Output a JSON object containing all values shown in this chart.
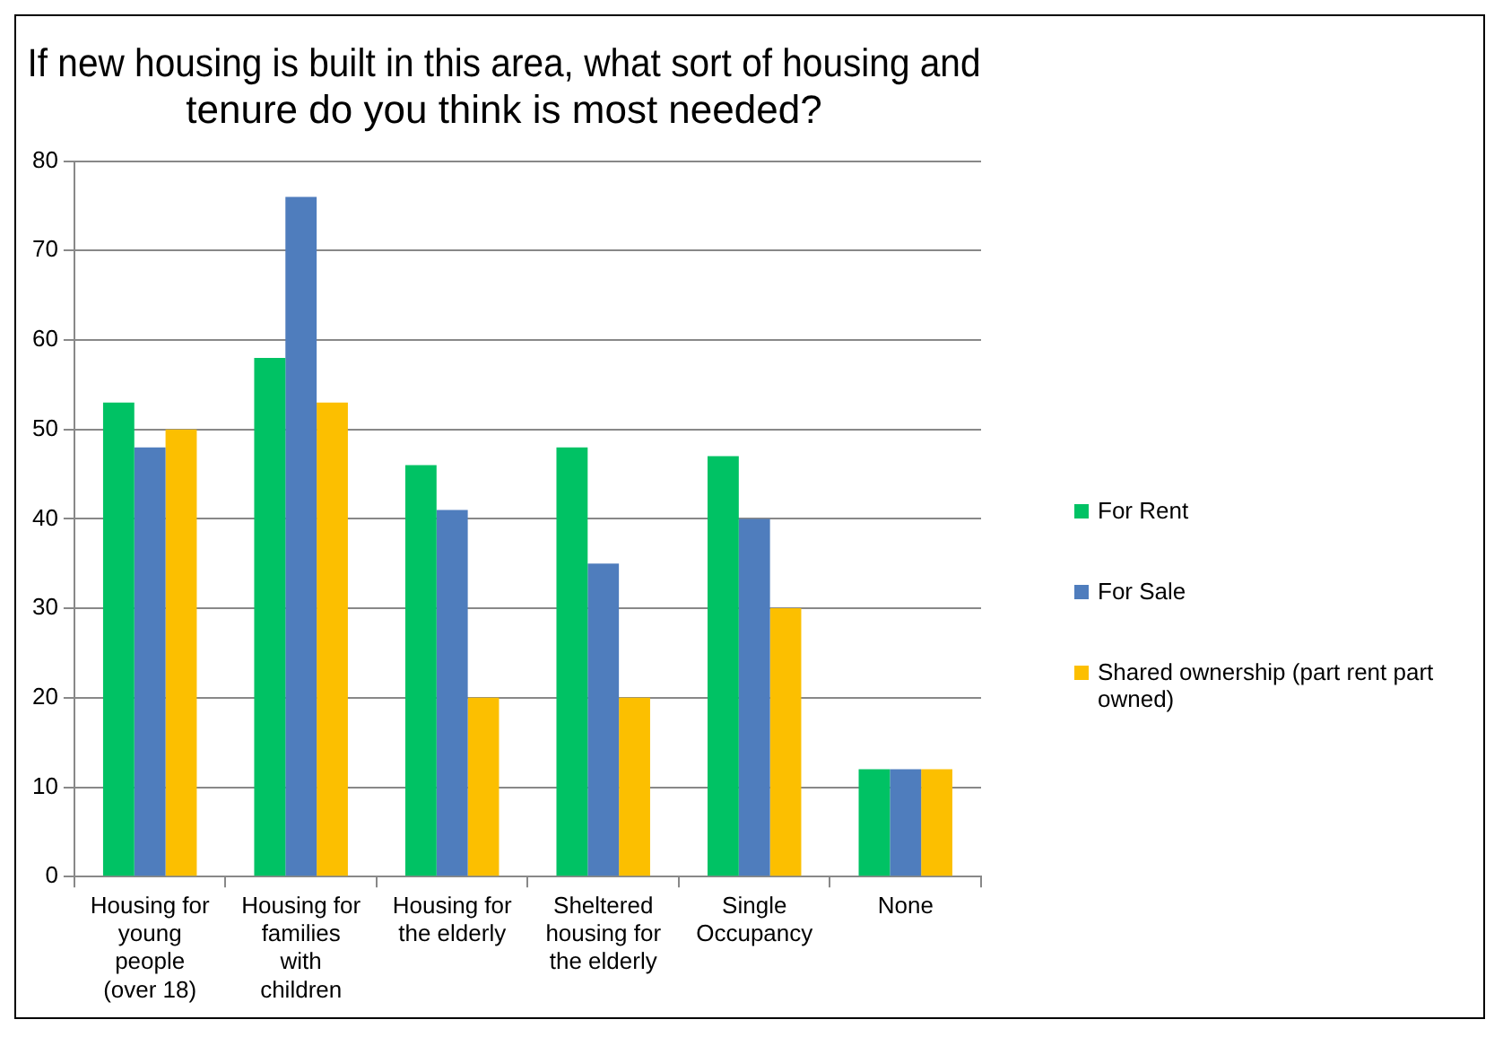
{
  "chart_data": {
    "type": "bar",
    "title": "If new housing is built in this area, what sort of housing and tenure do you think is most needed?",
    "categories": [
      "Housing for young people (over 18)",
      "Housing for families with children",
      "Housing for the elderly",
      "Sheltered housing for the elderly",
      "Single Occupancy",
      "None"
    ],
    "series": [
      {
        "name": "For Rent",
        "color": "#00c264",
        "values": [
          53,
          58,
          46,
          48,
          47,
          12
        ]
      },
      {
        "name": "For Sale",
        "color": "#4f7dbd",
        "values": [
          48,
          76,
          41,
          35,
          40,
          12
        ]
      },
      {
        "name": "Shared ownership (part rent part owned)",
        "color": "#fcbf00",
        "values": [
          50,
          53,
          20,
          20,
          30,
          12
        ]
      }
    ],
    "ylim": [
      0,
      80
    ],
    "yticks": [
      0,
      10,
      20,
      30,
      40,
      50,
      60,
      70,
      80
    ],
    "grid": "y",
    "legend": "right"
  }
}
